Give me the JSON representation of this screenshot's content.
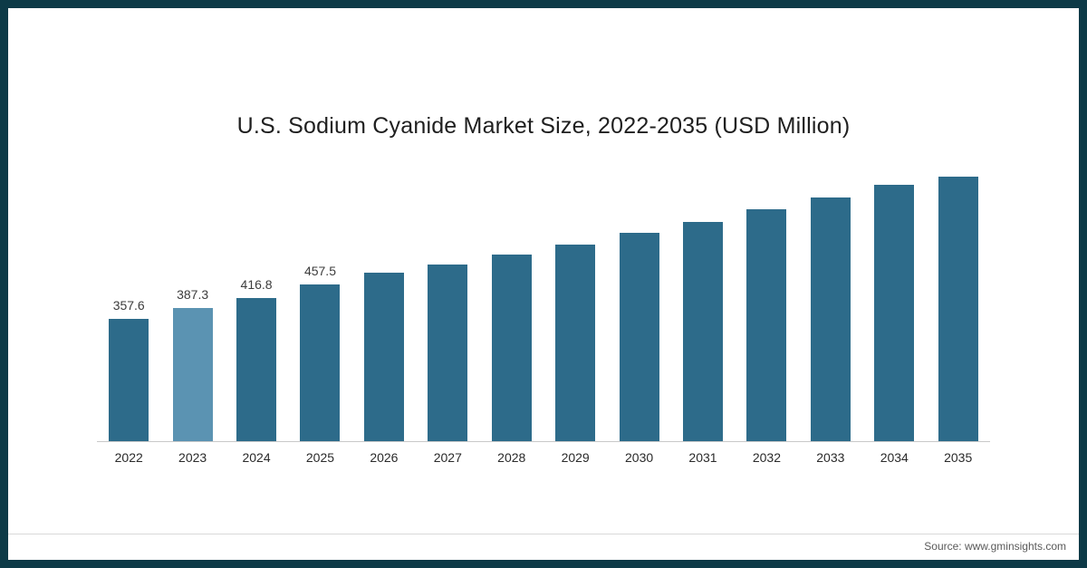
{
  "frame": {
    "border_color": "#0d3a47",
    "background_color": "#ffffff"
  },
  "chart_data": {
    "type": "bar",
    "title": "U.S. Sodium Cyanide Market Size, 2022-2035 (USD Million)",
    "categories": [
      "2022",
      "2023",
      "2024",
      "2025",
      "2026",
      "2027",
      "2028",
      "2029",
      "2030",
      "2031",
      "2032",
      "2033",
      "2034",
      "2035"
    ],
    "values": [
      357.6,
      387.3,
      416.8,
      457.5,
      490,
      516,
      545,
      574,
      608,
      640,
      676,
      711,
      748,
      772
    ],
    "value_labels": [
      "357.6",
      "387.3",
      "416.8",
      "457.5",
      "",
      "",
      "",
      "",
      "",
      "",
      "",
      "",
      "",
      ""
    ],
    "xlabel": "",
    "ylabel": "",
    "ylim": [
      0,
      840
    ],
    "grid": false,
    "legend": "none",
    "bar_color": "#2d6b8a",
    "highlight_color": "#5b93b2",
    "highlight_index": 1
  },
  "footer": {
    "source_label": "Source: www.gminsights.com"
  }
}
